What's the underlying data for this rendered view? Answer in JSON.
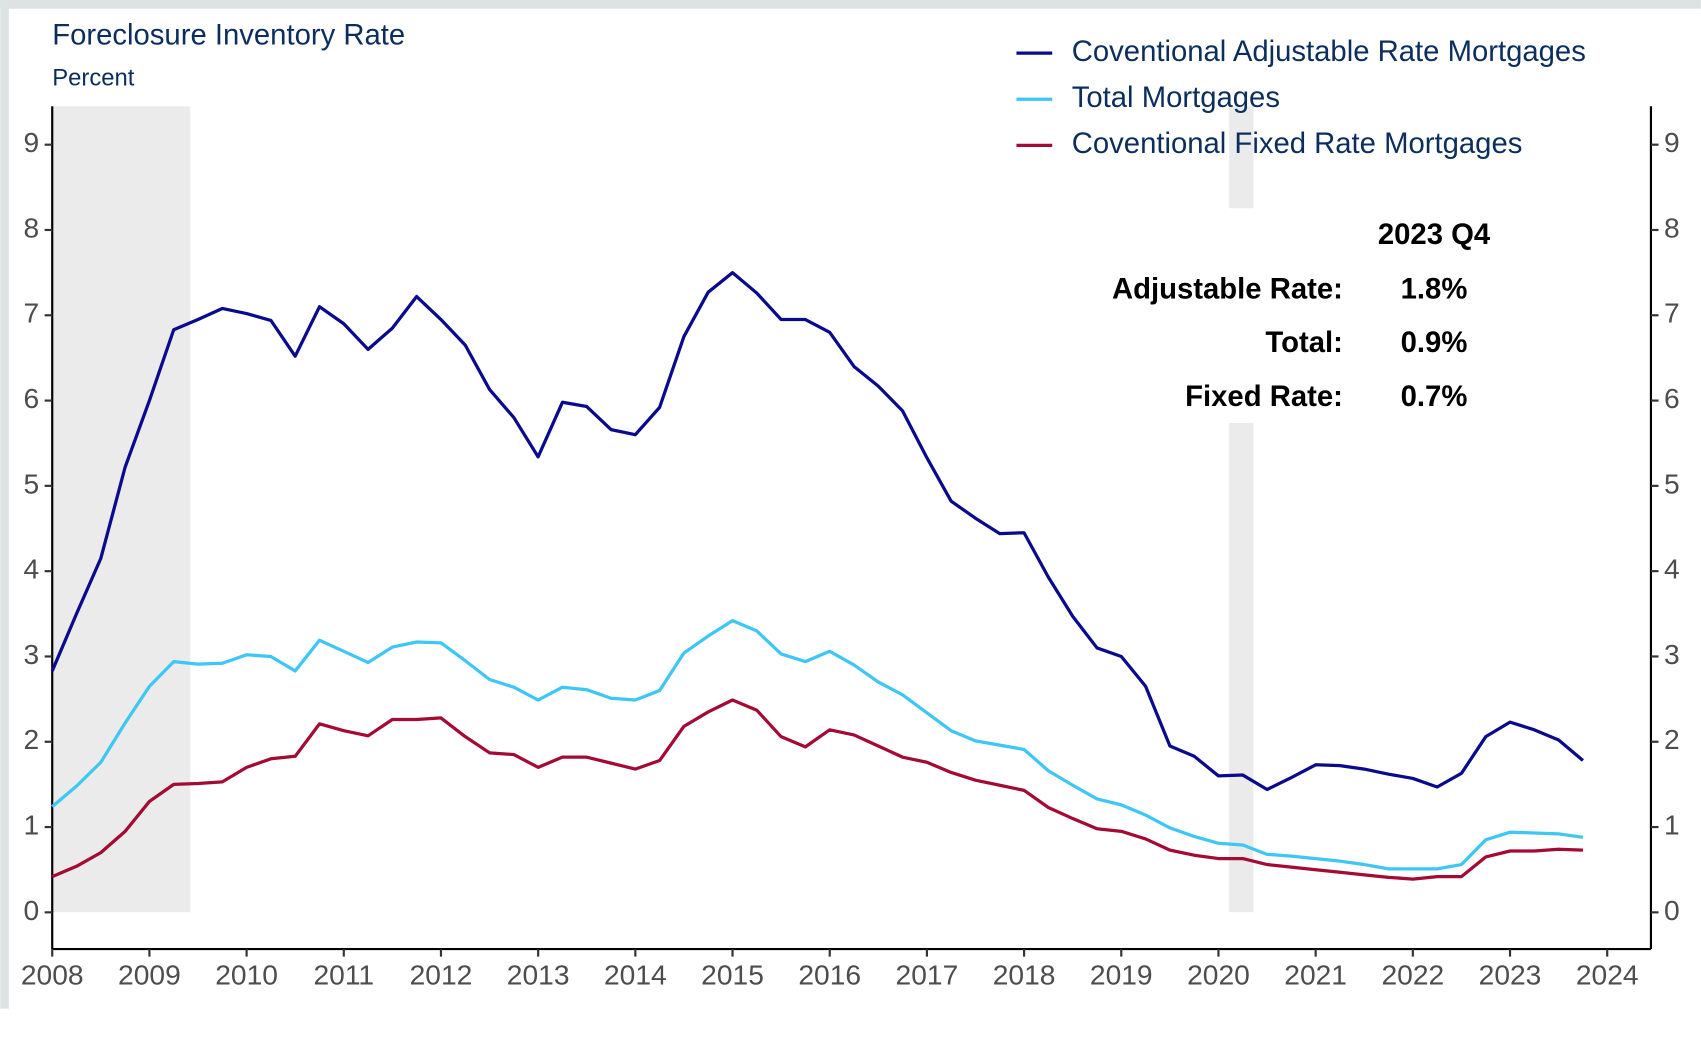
{
  "chart_data": {
    "type": "line",
    "title": "Foreclosure Inventory Rate",
    "subtitle": "Percent",
    "x": [
      2008,
      2008.25,
      2008.5,
      2008.75,
      2009,
      2009.25,
      2009.5,
      2009.75,
      2010,
      2010.25,
      2010.5,
      2010.75,
      2011,
      2011.25,
      2011.5,
      2011.75,
      2012,
      2012.25,
      2012.5,
      2012.75,
      2013,
      2013.25,
      2013.5,
      2013.75,
      2014,
      2014.25,
      2014.5,
      2014.75,
      2015,
      2015.25,
      2015.5,
      2015.75,
      2016,
      2016.25,
      2016.5,
      2016.75,
      2017,
      2017.25,
      2017.5,
      2017.75,
      2018,
      2018.25,
      2018.5,
      2018.75,
      2019,
      2019.25,
      2019.5,
      2019.75,
      2020,
      2020.25,
      2020.5,
      2020.75,
      2021,
      2021.25,
      2021.5,
      2021.75,
      2022,
      2022.25,
      2022.5,
      2022.75,
      2023,
      2023.25,
      2023.5,
      2023.75
    ],
    "series": [
      {
        "name": "Coventional Adjustable Rate Mortgages",
        "color": "#0a0a8c",
        "values": [
          2.83,
          3.5,
          4.15,
          5.22,
          6.0,
          6.83,
          6.95,
          7.08,
          7.02,
          6.94,
          6.52,
          7.1,
          6.9,
          6.6,
          6.85,
          7.22,
          6.95,
          6.65,
          6.13,
          5.8,
          5.34,
          5.98,
          5.93,
          5.66,
          5.6,
          5.92,
          6.75,
          7.27,
          7.5,
          7.26,
          6.95,
          6.95,
          6.8,
          6.4,
          6.17,
          5.88,
          5.33,
          4.82,
          4.62,
          4.44,
          4.45,
          3.93,
          3.47,
          3.1,
          3.0,
          2.65,
          1.95,
          1.83,
          1.6,
          1.61,
          1.44,
          1.58,
          1.73,
          1.72,
          1.68,
          1.62,
          1.57,
          1.47,
          1.63,
          2.06,
          2.23,
          2.14,
          2.02,
          1.78
        ]
      },
      {
        "name": "Total Mortgages",
        "color": "#3ec6f5",
        "values": [
          1.24,
          1.48,
          1.76,
          2.22,
          2.65,
          2.94,
          2.91,
          2.92,
          3.02,
          3.0,
          2.83,
          3.19,
          3.06,
          2.93,
          3.11,
          3.17,
          3.16,
          2.95,
          2.73,
          2.64,
          2.49,
          2.64,
          2.61,
          2.51,
          2.49,
          2.6,
          3.04,
          3.24,
          3.42,
          3.3,
          3.03,
          2.94,
          3.06,
          2.9,
          2.7,
          2.55,
          2.34,
          2.13,
          2.01,
          1.96,
          1.91,
          1.66,
          1.49,
          1.33,
          1.26,
          1.14,
          0.99,
          0.89,
          0.81,
          0.79,
          0.68,
          0.66,
          0.63,
          0.6,
          0.56,
          0.51,
          0.51,
          0.51,
          0.56,
          0.85,
          0.94,
          0.93,
          0.92,
          0.88
        ]
      },
      {
        "name": "Coventional Fixed Rate Mortgages",
        "color": "#a30b35",
        "values": [
          0.42,
          0.54,
          0.7,
          0.95,
          1.3,
          1.5,
          1.51,
          1.53,
          1.7,
          1.8,
          1.83,
          2.21,
          2.13,
          2.07,
          2.26,
          2.26,
          2.28,
          2.06,
          1.87,
          1.85,
          1.7,
          1.82,
          1.82,
          1.75,
          1.68,
          1.78,
          2.18,
          2.35,
          2.49,
          2.37,
          2.06,
          1.94,
          2.14,
          2.08,
          1.95,
          1.82,
          1.76,
          1.64,
          1.55,
          1.49,
          1.43,
          1.23,
          1.1,
          0.98,
          0.95,
          0.86,
          0.73,
          0.67,
          0.63,
          0.63,
          0.56,
          0.53,
          0.5,
          0.47,
          0.44,
          0.41,
          0.39,
          0.42,
          0.42,
          0.65,
          0.72,
          0.72,
          0.74,
          0.73
        ]
      }
    ],
    "shaded_periods": [
      [
        2008,
        2009.42
      ],
      [
        2020.11,
        2020.36
      ]
    ],
    "shade_color": "#ebebeb",
    "xlim": [
      2008,
      2024.45
    ],
    "xticks": [
      2008,
      2009,
      2010,
      2011,
      2012,
      2013,
      2014,
      2015,
      2016,
      2017,
      2018,
      2019,
      2020,
      2021,
      2022,
      2023,
      2024
    ],
    "ylim": [
      -0.43,
      9.45
    ],
    "yticks": [
      0,
      1,
      2,
      3,
      4,
      5,
      6,
      7,
      8,
      9
    ],
    "y2lim": [
      -0.43,
      9.45
    ],
    "y2ticks": [
      0,
      1,
      2,
      3,
      4,
      5,
      6,
      7,
      8,
      9
    ],
    "legend": "top-right",
    "annotation": {
      "title": "2023 Q4",
      "rows": [
        {
          "label": "Adjustable Rate:",
          "value": "1.8%"
        },
        {
          "label": "Total:",
          "value": "0.9%"
        },
        {
          "label": "Fixed Rate:",
          "value": "0.7%"
        }
      ]
    }
  }
}
